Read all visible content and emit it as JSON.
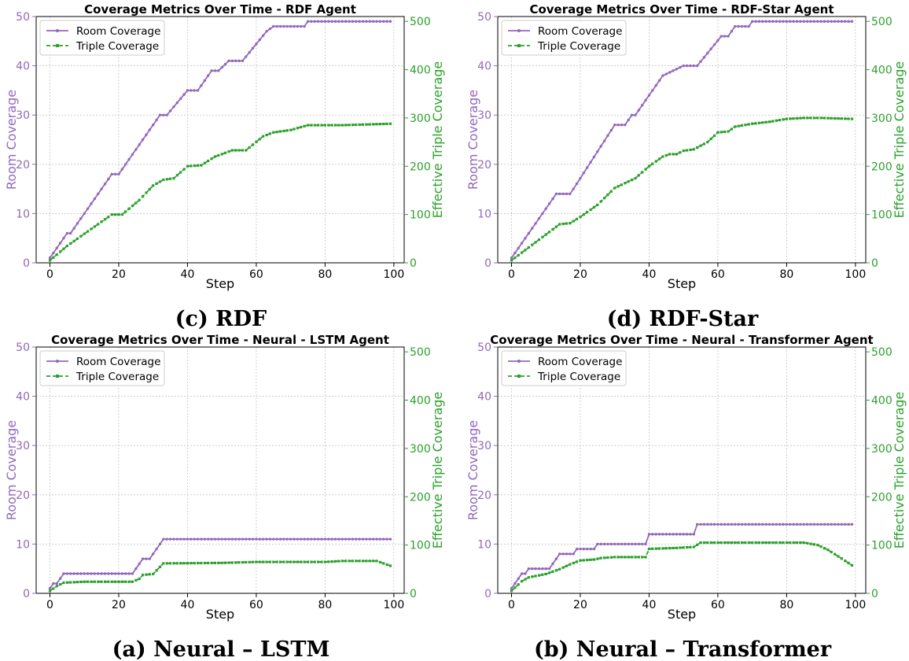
{
  "colors": {
    "room": "#9467bd",
    "triple": "#2ca02c",
    "grid": "#b0b0b0",
    "axis": "#000000"
  },
  "chart_data": [
    {
      "panel": "c",
      "type": "line",
      "title": "Coverage Metrics Over Time - RDF Agent",
      "caption": "(c) RDF",
      "xlabel": "Step",
      "ylabel_left": "Room Coverage",
      "ylabel_right": "Effective Triple Coverage",
      "xlim": [
        -4,
        103
      ],
      "ylim_left": [
        0,
        50
      ],
      "ylim_right": [
        0,
        510
      ],
      "xticks": [
        0,
        20,
        40,
        60,
        80,
        100
      ],
      "yticks_left": [
        0,
        10,
        20,
        30,
        40,
        50
      ],
      "yticks_right": [
        0,
        100,
        200,
        300,
        400,
        500
      ],
      "grid": true,
      "legend_position": "upper-left",
      "series": [
        {
          "name": "Room Coverage",
          "axis": "left",
          "marker": "circle",
          "dash": "solid",
          "points": [
            [
              0,
              1
            ],
            [
              5,
              6
            ],
            [
              6,
              6
            ],
            [
              18,
              18
            ],
            [
              20,
              18
            ],
            [
              31,
              29
            ],
            [
              32,
              30
            ],
            [
              34,
              30
            ],
            [
              40,
              35
            ],
            [
              43,
              35
            ],
            [
              47,
              39
            ],
            [
              49,
              39
            ],
            [
              52,
              41
            ],
            [
              56,
              41
            ],
            [
              63,
              47
            ],
            [
              65,
              48
            ],
            [
              74,
              48
            ],
            [
              75,
              49
            ],
            [
              99,
              49
            ]
          ]
        },
        {
          "name": "Triple Coverage",
          "axis": "right",
          "marker": "square",
          "dash": "dashed",
          "points": [
            [
              0,
              5
            ],
            [
              5,
              35
            ],
            [
              10,
              60
            ],
            [
              18,
              100
            ],
            [
              21,
              100
            ],
            [
              26,
              130
            ],
            [
              30,
              160
            ],
            [
              33,
              172
            ],
            [
              36,
              175
            ],
            [
              40,
              200
            ],
            [
              44,
              202
            ],
            [
              48,
              220
            ],
            [
              50,
              225
            ],
            [
              53,
              233
            ],
            [
              57,
              233
            ],
            [
              62,
              262
            ],
            [
              65,
              270
            ],
            [
              70,
              275
            ],
            [
              75,
              285
            ],
            [
              85,
              285
            ],
            [
              99,
              288
            ]
          ]
        }
      ]
    },
    {
      "panel": "d",
      "type": "line",
      "title": "Coverage Metrics Over Time - RDF-Star Agent",
      "caption": "(d) RDF-Star",
      "xlabel": "Step",
      "ylabel_left": "Room Coverage",
      "ylabel_right": "Effective Triple Coverage",
      "xlim": [
        -4,
        103
      ],
      "ylim_left": [
        0,
        50
      ],
      "ylim_right": [
        0,
        510
      ],
      "xticks": [
        0,
        20,
        40,
        60,
        80,
        100
      ],
      "yticks_left": [
        0,
        10,
        20,
        30,
        40,
        50
      ],
      "yticks_right": [
        0,
        100,
        200,
        300,
        400,
        500
      ],
      "grid": true,
      "legend_position": "upper-left",
      "series": [
        {
          "name": "Room Coverage",
          "axis": "left",
          "marker": "circle",
          "dash": "solid",
          "points": [
            [
              0,
              1
            ],
            [
              13,
              14
            ],
            [
              17,
              14
            ],
            [
              18,
              15
            ],
            [
              30,
              28
            ],
            [
              33,
              28
            ],
            [
              35,
              30
            ],
            [
              36,
              30
            ],
            [
              44,
              38
            ],
            [
              47,
              39
            ],
            [
              50,
              40
            ],
            [
              54,
              40
            ],
            [
              61,
              46
            ],
            [
              63,
              46
            ],
            [
              65,
              48
            ],
            [
              69,
              48
            ],
            [
              70,
              49
            ],
            [
              99,
              49
            ]
          ]
        },
        {
          "name": "Triple Coverage",
          "axis": "right",
          "marker": "square",
          "dash": "dashed",
          "points": [
            [
              0,
              5
            ],
            [
              14,
              80
            ],
            [
              17,
              82
            ],
            [
              20,
              95
            ],
            [
              25,
              120
            ],
            [
              30,
              155
            ],
            [
              33,
              165
            ],
            [
              36,
              175
            ],
            [
              40,
              200
            ],
            [
              44,
              220
            ],
            [
              46,
              225
            ],
            [
              48,
              225
            ],
            [
              50,
              232
            ],
            [
              53,
              235
            ],
            [
              57,
              250
            ],
            [
              60,
              270
            ],
            [
              63,
              272
            ],
            [
              65,
              282
            ],
            [
              70,
              288
            ],
            [
              75,
              292
            ],
            [
              80,
              298
            ],
            [
              85,
              300
            ],
            [
              90,
              300
            ],
            [
              99,
              298
            ]
          ]
        }
      ]
    },
    {
      "panel": "a",
      "type": "line",
      "title": "Coverage Metrics Over Time - Neural - LSTM Agent",
      "caption": "(a) Neural – LSTM",
      "xlabel": "Step",
      "ylabel_left": "Room Coverage",
      "ylabel_right": "Effective Triple Coverage",
      "xlim": [
        -4,
        103
      ],
      "ylim_left": [
        0,
        50
      ],
      "ylim_right": [
        0,
        510
      ],
      "xticks": [
        0,
        20,
        40,
        60,
        80,
        100
      ],
      "yticks_left": [
        0,
        10,
        20,
        30,
        40,
        50
      ],
      "yticks_right": [
        0,
        100,
        200,
        300,
        400,
        500
      ],
      "grid": true,
      "legend_position": "upper-left",
      "series": [
        {
          "name": "Room Coverage",
          "axis": "left",
          "marker": "circle",
          "dash": "solid",
          "points": [
            [
              0,
              1
            ],
            [
              1,
              2
            ],
            [
              2,
              2
            ],
            [
              4,
              4
            ],
            [
              24,
              4
            ],
            [
              27,
              7
            ],
            [
              29,
              7
            ],
            [
              33,
              11
            ],
            [
              99,
              11
            ]
          ]
        },
        {
          "name": "Triple Coverage",
          "axis": "right",
          "marker": "square",
          "dash": "dashed",
          "points": [
            [
              0,
              5
            ],
            [
              2,
              15
            ],
            [
              4,
              22
            ],
            [
              10,
              24
            ],
            [
              24,
              24
            ],
            [
              26,
              30
            ],
            [
              27,
              38
            ],
            [
              30,
              40
            ],
            [
              33,
              62
            ],
            [
              50,
              63
            ],
            [
              60,
              65
            ],
            [
              80,
              65
            ],
            [
              85,
              67
            ],
            [
              95,
              67
            ],
            [
              99,
              57
            ]
          ]
        }
      ]
    },
    {
      "panel": "b",
      "type": "line",
      "title": "Coverage Metrics Over Time - Neural - Transformer Agent",
      "caption": "(b) Neural – Transformer",
      "xlabel": "Step",
      "ylabel_left": "Room Coverage",
      "ylabel_right": "Effective Triple Coverage",
      "xlim": [
        -4,
        103
      ],
      "ylim_left": [
        0,
        50
      ],
      "ylim_right": [
        0,
        510
      ],
      "xticks": [
        0,
        20,
        40,
        60,
        80,
        100
      ],
      "yticks_left": [
        0,
        10,
        20,
        30,
        40,
        50
      ],
      "yticks_right": [
        0,
        100,
        200,
        300,
        400,
        500
      ],
      "grid": true,
      "legend_position": "upper-left",
      "series": [
        {
          "name": "Room Coverage",
          "axis": "left",
          "marker": "circle",
          "dash": "solid",
          "points": [
            [
              0,
              1
            ],
            [
              3,
              4
            ],
            [
              4,
              4
            ],
            [
              5,
              5
            ],
            [
              11,
              5
            ],
            [
              12,
              6
            ],
            [
              14,
              8
            ],
            [
              18,
              8
            ],
            [
              19,
              9
            ],
            [
              24,
              9
            ],
            [
              25,
              10
            ],
            [
              39,
              10
            ],
            [
              40,
              12
            ],
            [
              53,
              12
            ],
            [
              54,
              14
            ],
            [
              99,
              14
            ]
          ]
        },
        {
          "name": "Triple Coverage",
          "axis": "right",
          "marker": "square",
          "dash": "dashed",
          "points": [
            [
              0,
              5
            ],
            [
              3,
              25
            ],
            [
              5,
              33
            ],
            [
              10,
              40
            ],
            [
              14,
              50
            ],
            [
              17,
              60
            ],
            [
              20,
              68
            ],
            [
              24,
              70
            ],
            [
              26,
              73
            ],
            [
              30,
              75
            ],
            [
              39,
              75
            ],
            [
              40,
              92
            ],
            [
              48,
              94
            ],
            [
              53,
              96
            ],
            [
              55,
              105
            ],
            [
              85,
              105
            ],
            [
              89,
              100
            ],
            [
              92,
              90
            ],
            [
              96,
              72
            ],
            [
              99,
              58
            ]
          ]
        }
      ]
    }
  ]
}
